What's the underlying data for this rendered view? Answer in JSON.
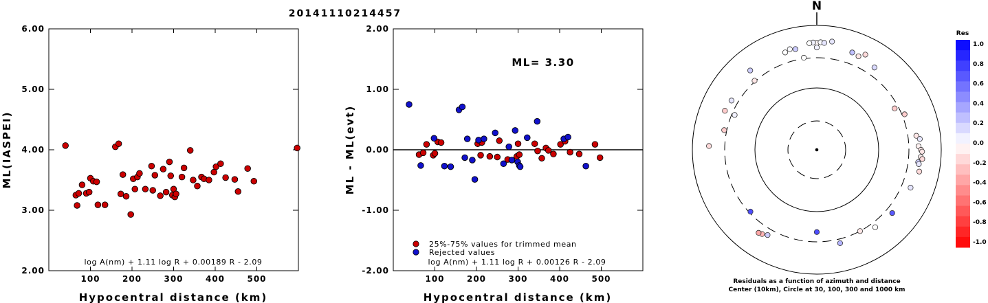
{
  "title": "20141110214457",
  "chart_data": [
    {
      "type": "scatter",
      "xlabel": "Hypocentral distance (km)",
      "ylabel": "ML(IASPEI)",
      "xlim": [
        0,
        600
      ],
      "ylim": [
        2.0,
        6.0
      ],
      "x_ticks": [
        "100",
        "200",
        "300",
        "400",
        "500"
      ],
      "y_ticks": [
        "2.00",
        "3.00",
        "4.00",
        "5.00",
        "6.00"
      ],
      "grid": false,
      "formula": "log A(nm) + 1.11 log R + 0.00189 R - 2.09",
      "series": [
        {
          "color": "#cc0000",
          "points": [
            [
              40,
              4.07
            ],
            [
              65,
              3.25
            ],
            [
              68,
              3.08
            ],
            [
              72,
              3.28
            ],
            [
              80,
              3.42
            ],
            [
              90,
              3.28
            ],
            [
              97,
              3.3
            ],
            [
              100,
              3.53
            ],
            [
              107,
              3.48
            ],
            [
              115,
              3.47
            ],
            [
              118,
              3.09
            ],
            [
              135,
              3.09
            ],
            [
              160,
              4.05
            ],
            [
              168,
              4.1
            ],
            [
              173,
              3.27
            ],
            [
              178,
              3.59
            ],
            [
              186,
              3.23
            ],
            [
              197,
              2.93
            ],
            [
              203,
              3.52
            ],
            [
              207,
              3.35
            ],
            [
              213,
              3.55
            ],
            [
              218,
              3.61
            ],
            [
              232,
              3.35
            ],
            [
              247,
              3.73
            ],
            [
              250,
              3.33
            ],
            [
              255,
              3.58
            ],
            [
              268,
              3.24
            ],
            [
              275,
              3.68
            ],
            [
              282,
              3.3
            ],
            [
              290,
              3.8
            ],
            [
              293,
              3.57
            ],
            [
              297,
              3.25
            ],
            [
              300,
              3.35
            ],
            [
              303,
              3.22
            ],
            [
              306,
              3.27
            ],
            [
              320,
              3.55
            ],
            [
              325,
              3.7
            ],
            [
              340,
              3.99
            ],
            [
              347,
              3.5
            ],
            [
              357,
              3.4
            ],
            [
              367,
              3.55
            ],
            [
              373,
              3.52
            ],
            [
              385,
              3.5
            ],
            [
              397,
              3.63
            ],
            [
              402,
              3.72
            ],
            [
              413,
              3.77
            ],
            [
              425,
              3.54
            ],
            [
              447,
              3.51
            ],
            [
              455,
              3.31
            ],
            [
              478,
              3.69
            ],
            [
              493,
              3.48
            ],
            [
              597,
              4.03
            ]
          ]
        }
      ]
    },
    {
      "type": "scatter",
      "xlabel": "Hypocentral distance (km)",
      "ylabel": "ML - ML(evt)",
      "xlim": [
        0,
        600
      ],
      "ylim": [
        -2.0,
        2.0
      ],
      "x_ticks": [
        "100",
        "200",
        "300",
        "400",
        "500"
      ],
      "y_ticks": [
        "-2.00",
        "-1.00",
        "0.00",
        "1.00",
        "2.00"
      ],
      "annotation": "ML= 3.30",
      "formula": "log A(nm) + 1.11 log R + 0.00126 R - 2.09",
      "series": [
        {
          "name": "25%-75% values for trimmed mean",
          "color": "#cc0000",
          "points": [
            [
              62,
              -0.08
            ],
            [
              72,
              -0.05
            ],
            [
              80,
              0.09
            ],
            [
              96,
              -0.09
            ],
            [
              100,
              -0.06
            ],
            [
              107,
              0.13
            ],
            [
              115,
              0.12
            ],
            [
              203,
              0.1
            ],
            [
              210,
              -0.09
            ],
            [
              213,
              0.12
            ],
            [
              232,
              -0.11
            ],
            [
              250,
              -0.12
            ],
            [
              255,
              0.15
            ],
            [
              275,
              -0.16
            ],
            [
              297,
              -0.11
            ],
            [
              300,
              0.1
            ],
            [
              303,
              -0.08
            ],
            [
              340,
              0.1
            ],
            [
              347,
              -0.02
            ],
            [
              357,
              -0.14
            ],
            [
              367,
              0.03
            ],
            [
              373,
              -0.01
            ],
            [
              385,
              -0.07
            ],
            [
              402,
              0.09
            ],
            [
              413,
              0.14
            ],
            [
              425,
              -0.04
            ],
            [
              447,
              -0.07
            ],
            [
              485,
              0.09
            ],
            [
              497,
              -0.13
            ]
          ]
        },
        {
          "name": "Rejected values",
          "color": "#1111cc",
          "points": [
            [
              38,
              0.75
            ],
            [
              66,
              -0.26
            ],
            [
              98,
              0.19
            ],
            [
              123,
              -0.27
            ],
            [
              138,
              -0.28
            ],
            [
              158,
              0.66
            ],
            [
              166,
              0.71
            ],
            [
              172,
              -0.13
            ],
            [
              178,
              0.18
            ],
            [
              190,
              -0.17
            ],
            [
              196,
              -0.49
            ],
            [
              205,
              0.16
            ],
            [
              218,
              0.18
            ],
            [
              245,
              0.28
            ],
            [
              265,
              -0.23
            ],
            [
              278,
              0.05
            ],
            [
              285,
              -0.17
            ],
            [
              293,
              0.32
            ],
            [
              299,
              -0.2
            ],
            [
              303,
              -0.26
            ],
            [
              305,
              -0.28
            ],
            [
              322,
              0.2
            ],
            [
              346,
              0.47
            ],
            [
              410,
              0.18
            ],
            [
              420,
              0.21
            ],
            [
              463,
              -0.27
            ]
          ]
        }
      ]
    },
    {
      "type": "scatter",
      "kind": "polar",
      "north_label": "N",
      "caption_line1": "Residuals as a function of azimuth and distance",
      "caption_line2": "Center (10km), Circle at 30, 100, 300 and 1000 km",
      "color_scale_title": "Res",
      "color_scale_ticks": [
        "1.0",
        "0.8",
        "0.6",
        "0.4",
        "0.2",
        "0.0",
        "-0.2",
        "-0.4",
        "-0.6",
        "-0.8",
        "-1.0"
      ],
      "colors": {
        "pos_strong": "#0000ff",
        "neg_strong": "#ff0000",
        "neutral": "#ffffff"
      },
      "points": [
        {
          "azimuth": 0,
          "distance": 520,
          "residual": -0.03
        },
        {
          "azimuth": -2,
          "distance": 530,
          "residual": 0.05
        },
        {
          "azimuth": 2,
          "distance": 535,
          "residual": 0.02
        },
        {
          "azimuth": 4,
          "distance": 525,
          "residual": 0.1
        },
        {
          "azimuth": -4,
          "distance": 520,
          "residual": 0.0
        },
        {
          "azimuth": 0,
          "distance": 440,
          "residual": 0.05
        },
        {
          "azimuth": 8,
          "distance": 570,
          "residual": 0.1
        },
        {
          "azimuth": -15,
          "distance": 470,
          "residual": 0.02
        },
        {
          "azimuth": -18,
          "distance": 440,
          "residual": 0.0
        },
        {
          "azimuth": -12,
          "distance": 450,
          "residual": 0.2
        },
        {
          "azimuth": 20,
          "distance": 460,
          "residual": 0.25
        },
        {
          "azimuth": 24,
          "distance": 440,
          "residual": -0.1
        },
        {
          "azimuth": 27,
          "distance": 520,
          "residual": -0.15
        },
        {
          "azimuth": 35,
          "distance": 410,
          "residual": 0.15
        },
        {
          "azimuth": -40,
          "distance": 460,
          "residual": 0.2
        },
        {
          "azimuth": -42,
          "distance": 310,
          "residual": -0.1
        },
        {
          "azimuth": -8,
          "distance": 310,
          "residual": 0.0
        },
        {
          "azimuth": -60,
          "distance": 380,
          "residual": 0.1
        },
        {
          "azimuth": -67,
          "distance": 400,
          "residual": -0.2
        },
        {
          "azimuth": -67,
          "distance": 270,
          "residual": 0.05
        },
        {
          "azimuth": -78,
          "distance": 330,
          "residual": -0.2
        },
        {
          "azimuth": -88,
          "distance": 540,
          "residual": -0.15
        },
        {
          "azimuth": 62,
          "distance": 260,
          "residual": -0.2
        },
        {
          "azimuth": 68,
          "distance": 330,
          "residual": -0.2
        },
        {
          "azimuth": 82,
          "distance": 410,
          "residual": -0.1
        },
        {
          "azimuth": 84,
          "distance": 460,
          "residual": 0.1
        },
        {
          "azimuth": 88,
          "distance": 430,
          "residual": -0.05
        },
        {
          "azimuth": 90,
          "distance": 470,
          "residual": -0.1
        },
        {
          "azimuth": 91,
          "distance": 490,
          "residual": -0.1
        },
        {
          "azimuth": 94,
          "distance": 470,
          "residual": -0.05
        },
        {
          "azimuth": 97,
          "distance": 435,
          "residual": 0.2
        },
        {
          "azimuth": 98,
          "distance": 450,
          "residual": 0.1
        },
        {
          "azimuth": 95,
          "distance": 500,
          "residual": -0.15
        },
        {
          "azimuth": 102,
          "distance": 480,
          "residual": -0.15
        },
        {
          "azimuth": 112,
          "distance": 420,
          "residual": 0.1
        },
        {
          "azimuth": 180,
          "distance": 210,
          "residual": 0.7
        },
        {
          "azimuth": 152,
          "distance": 300,
          "residual": -0.1
        },
        {
          "azimuth": 143,
          "distance": 360,
          "residual": 0.0
        },
        {
          "azimuth": 130,
          "distance": 380,
          "residual": 0.65
        },
        {
          "azimuth": 166,
          "distance": 350,
          "residual": 0.3
        },
        {
          "azimuth": -147,
          "distance": 410,
          "residual": -0.3
        },
        {
          "azimuth": -145,
          "distance": 425,
          "residual": -0.35
        },
        {
          "azimuth": -150,
          "distance": 380,
          "residual": 0.2
        },
        {
          "azimuth": -133,
          "distance": 285,
          "residual": 0.7
        }
      ]
    }
  ]
}
